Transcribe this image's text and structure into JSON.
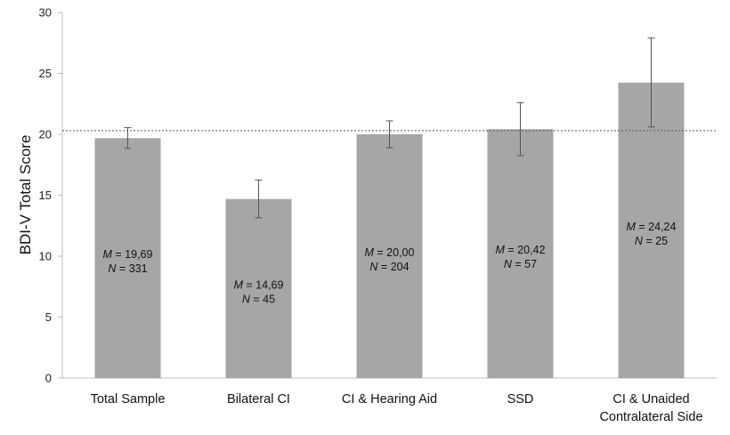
{
  "chart_data": {
    "type": "bar",
    "ylabel": "BDI-V Total Score",
    "xlabel": "",
    "ylim": [
      0,
      30
    ],
    "yticks": [
      0,
      5,
      10,
      15,
      20,
      25,
      30
    ],
    "categories": [
      [
        "Total Sample"
      ],
      [
        "Bilateral CI"
      ],
      [
        "CI & Hearing Aid"
      ],
      [
        "SSD"
      ],
      [
        "CI & Unaided",
        "Contralateral Side"
      ]
    ],
    "values": [
      19.69,
      14.69,
      20.0,
      20.42,
      24.24
    ],
    "error_low": [
      18.85,
      13.15,
      18.9,
      18.25,
      20.6
    ],
    "error_high": [
      20.55,
      16.25,
      21.1,
      22.6,
      27.9
    ],
    "mean_labels": [
      "19,69",
      "14,69",
      "20,00",
      "20,42",
      "24,24"
    ],
    "n_labels": [
      "331",
      "45",
      "204",
      "57",
      "25"
    ],
    "m_symbol": "M",
    "n_symbol": "N",
    "eq": " = ",
    "reference_line": 20.3,
    "bar_color": "#a6a6a6",
    "grid": false,
    "legend": "none"
  }
}
